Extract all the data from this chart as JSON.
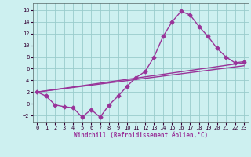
{
  "xlabel": "Windchill (Refroidissement éolien,°C)",
  "bg_color": "#cdf0f0",
  "grid_color": "#99cccc",
  "line_color": "#993399",
  "x_ticks": [
    0,
    1,
    2,
    3,
    4,
    5,
    6,
    7,
    8,
    9,
    10,
    11,
    12,
    13,
    14,
    15,
    16,
    17,
    18,
    19,
    20,
    21,
    22,
    23
  ],
  "y_ticks": [
    -2,
    0,
    2,
    4,
    6,
    8,
    10,
    12,
    14,
    16
  ],
  "ylim": [
    -3.2,
    17.2
  ],
  "xlim": [
    -0.5,
    23.5
  ],
  "line1_x": [
    0,
    1,
    2,
    3,
    4,
    5,
    6,
    7,
    8,
    9,
    10,
    11,
    12,
    13,
    14,
    15,
    16,
    17,
    18,
    19,
    20,
    21,
    22,
    23
  ],
  "line1_y": [
    2,
    1.3,
    -0.2,
    -0.5,
    -0.7,
    -2.3,
    -1.0,
    -2.3,
    -0.2,
    1.3,
    3.0,
    4.5,
    5.5,
    8.0,
    11.5,
    14.0,
    15.8,
    15.2,
    13.2,
    11.5,
    9.5,
    8.0,
    7.0,
    7.2
  ],
  "line2_x": [
    0,
    23
  ],
  "line2_y": [
    2.0,
    7.0
  ],
  "line3_x": [
    0,
    23
  ],
  "line3_y": [
    2.0,
    6.5
  ],
  "marker": "D",
  "markersize": 2.5,
  "linewidth": 1.0,
  "tick_fontsize": 5,
  "xlabel_fontsize": 5.5
}
